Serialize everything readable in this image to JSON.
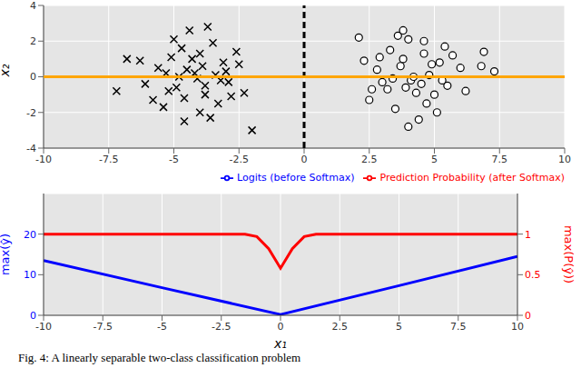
{
  "chart_data": [
    {
      "type": "scatter",
      "xlim": [
        -10,
        10
      ],
      "xticks": [
        -10,
        -7.5,
        -5,
        -2.5,
        0,
        2.5,
        5,
        7.5,
        10
      ],
      "ylim": [
        -4,
        4
      ],
      "yticks": [
        -4,
        -2,
        0,
        2,
        4
      ],
      "y_label": "x₂",
      "grid": true,
      "series": [
        {
          "type": "scatter",
          "marker": "x",
          "color": "#000000",
          "x": [
            -4.2,
            -3.8,
            -5.1,
            -3.1,
            -4.6,
            -2.9,
            -5.6,
            -3.5,
            -4.0,
            -4.8,
            -3.3,
            -5.2,
            -2.6,
            -4.4,
            -3.9,
            -6.1,
            -3.0,
            -4.7,
            -5.4,
            -2.3,
            -4.1,
            -3.6,
            -5.0,
            -4.3,
            -2.8,
            -6.3,
            -3.4,
            -4.9,
            -3.7,
            -5.8,
            -4.5,
            -2.5,
            -7.2,
            -6.8,
            -2.0,
            -3.2,
            -4.0,
            -5.3,
            -3.8,
            -4.6
          ],
          "values": [
            0.2,
            -0.5,
            1.1,
            0.8,
            -1.2,
            -0.3,
            0.5,
            1.9,
            -2.0,
            0.0,
            -1.5,
            -0.8,
            1.4,
            2.6,
            0.6,
            -0.4,
            0.3,
            1.6,
            -1.7,
            -0.9,
            -0.1,
            -2.3,
            2.1,
            1.0,
            -1.1,
            0.9,
            0.1,
            -0.6,
            2.8,
            -1.3,
            0.4,
            0.7,
            -0.8,
            1.0,
            -3.0,
            -0.2,
            1.3,
            0.2,
            -1.0,
            -2.5
          ]
        },
        {
          "type": "scatter",
          "marker": "circle",
          "color": "#000000",
          "x": [
            4.1,
            3.7,
            5.0,
            3.2,
            4.6,
            2.8,
            5.5,
            3.5,
            4.0,
            4.8,
            3.3,
            5.2,
            2.5,
            4.4,
            3.9,
            6.0,
            3.0,
            4.7,
            5.4,
            2.3,
            4.2,
            3.6,
            5.1,
            4.3,
            2.9,
            6.2,
            3.4,
            4.9,
            3.8,
            5.7,
            4.5,
            2.6,
            7.3,
            6.9,
            2.1,
            6.8,
            4.0,
            5.3,
            3.8,
            4.6
          ],
          "values": [
            -0.2,
            0.6,
            -1.0,
            -0.7,
            1.3,
            0.4,
            -0.5,
            -1.8,
            2.1,
            0.1,
            1.5,
            0.8,
            -1.3,
            -2.4,
            -0.6,
            0.5,
            -0.3,
            -1.5,
            1.7,
            0.9,
            0.0,
            2.3,
            -2.0,
            -0.9,
            1.1,
            -0.8,
            -0.1,
            0.7,
            2.6,
            1.2,
            -0.4,
            -0.7,
            0.3,
            1.4,
            2.2,
            0.6,
            -2.8,
            -0.2,
            1.0,
            2.0
          ]
        },
        {
          "type": "line",
          "line_style": "dashed",
          "color": "#000000",
          "x": [
            0,
            0
          ],
          "values": [
            -4,
            4
          ]
        },
        {
          "type": "line",
          "line_style": "solid",
          "color": "#ffa500",
          "x": [
            -10,
            10
          ],
          "values": [
            0,
            0
          ]
        }
      ]
    },
    {
      "type": "line",
      "xlim": [
        -10,
        10
      ],
      "xticks": [
        -10,
        -7.5,
        -5,
        -2.5,
        0,
        2.5,
        5,
        7.5,
        10
      ],
      "x_label": "x₁",
      "ylim": [
        0,
        30
      ],
      "yticks": [
        0,
        10,
        20
      ],
      "y_label": "max(ŷ)",
      "y2lim": [
        0,
        1.5
      ],
      "y2ticks": [
        0,
        0.5,
        1
      ],
      "y2_label": "max(P(ŷ))",
      "grid": true,
      "legend": "upper right",
      "series": [
        {
          "name": "Logits (before Softmax)",
          "color": "#0000ff",
          "x": [
            -10,
            -5,
            0,
            5,
            10
          ],
          "values": [
            13.5,
            6.8,
            0.2,
            7.3,
            14.5
          ]
        },
        {
          "name": "Prediction Probability (after Softmax)",
          "color": "#ff0000",
          "axis": "y2",
          "x": [
            -10,
            -2,
            -1.5,
            -1,
            -0.5,
            0,
            0.5,
            1,
            1.5,
            2,
            10
          ],
          "values": [
            1,
            1,
            1,
            0.97,
            0.82,
            0.58,
            0.82,
            0.97,
            1,
            1,
            1
          ]
        }
      ],
      "annotations": [
        "Fig. 4: A linearly separable two-class classification problem"
      ]
    }
  ]
}
